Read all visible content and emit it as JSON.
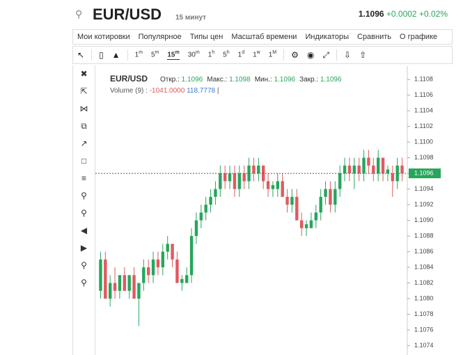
{
  "header": {
    "symbol": "EUR/USD",
    "interval": "15 минут",
    "price": "1.1096",
    "change": "+0.0002",
    "change_pct": "+0.02%"
  },
  "menu": [
    "Мои котировки",
    "Популярное",
    "Типы цен",
    "Масштаб времени",
    "Индикаторы",
    "Сравнить",
    "О графике"
  ],
  "timeframes": [
    {
      "n": "1",
      "u": "m"
    },
    {
      "n": "5",
      "u": "m"
    },
    {
      "n": "15",
      "u": "m"
    },
    {
      "n": "30",
      "u": "m"
    },
    {
      "n": "1",
      "u": "h"
    },
    {
      "n": "5",
      "u": "h"
    },
    {
      "n": "1",
      "u": "d"
    },
    {
      "n": "1",
      "u": "w"
    },
    {
      "n": "1",
      "u": "M"
    }
  ],
  "legend": {
    "symbol": "EUR/USD",
    "open_label": "Откр.:",
    "open": "1.1096",
    "high_label": "Макс.:",
    "high": "1.1098",
    "low_label": "Мин.:",
    "low": "1.1096",
    "close_label": "Закр.:",
    "close": "1.1096"
  },
  "volume_legend": {
    "label": "Volume (9)",
    "sep": ":",
    "v1": "-1041.0000",
    "v2": "118.7778",
    "end": "|"
  },
  "chart_data": {
    "type": "candlestick",
    "up_color": "#26a65b",
    "down_color": "#e05a5f",
    "ylim": [
      1.10728,
      1.11097
    ],
    "yticks": [
      1.1108,
      1.1106,
      1.1104,
      1.1102,
      {
        "value": 1.11,
        "label": "1.1100"
      },
      1.1098,
      1.1096,
      1.1094,
      1.1092,
      {
        "value": 1.109,
        "label": "1.1090"
      },
      1.1088,
      1.1086,
      1.1084,
      1.1082,
      {
        "value": 1.108,
        "label": "1.1080"
      },
      1.1078,
      1.1076,
      1.1074
    ],
    "last_price": {
      "value": 1.1096,
      "label": "1.1096"
    },
    "ohlc": [
      [
        1.1081,
        1.1086,
        1.108,
        1.1085
      ],
      [
        1.1085,
        1.1086,
        1.108,
        1.108
      ],
      [
        1.108,
        1.1083,
        1.1079,
        1.1082
      ],
      [
        1.1082,
        1.1084,
        1.108,
        1.1081
      ],
      [
        1.1081,
        1.1083,
        1.108,
        1.1083
      ],
      [
        1.1083,
        1.1084,
        1.1081,
        1.1081
      ],
      [
        1.1081,
        1.1083,
        1.108,
        1.1083
      ],
      [
        1.1083,
        1.1084,
        1.108,
        1.108
      ],
      [
        1.108,
        1.1082,
        1.10765,
        1.1082
      ],
      [
        1.1082,
        1.1085,
        1.1081,
        1.1084
      ],
      [
        1.1084,
        1.1085,
        1.1082,
        1.1083
      ],
      [
        1.1083,
        1.1086,
        1.1082,
        1.1085
      ],
      [
        1.1085,
        1.1086,
        1.1083,
        1.1084
      ],
      [
        1.1084,
        1.1087,
        1.1083,
        1.1086
      ],
      [
        1.1086,
        1.1088,
        1.1085,
        1.1087
      ],
      [
        1.1087,
        1.1087,
        1.1084,
        1.1085
      ],
      [
        1.1085,
        1.1086,
        1.1082,
        1.1082
      ],
      [
        1.1082,
        1.1083,
        1.1081,
        1.10825
      ],
      [
        1.1082,
        1.1084,
        1.1082,
        1.1083
      ],
      [
        1.1083,
        1.1089,
        1.1082,
        1.1088
      ],
      [
        1.1088,
        1.1091,
        1.1087,
        1.109
      ],
      [
        1.109,
        1.1092,
        1.1089,
        1.1091
      ],
      [
        1.1091,
        1.1093,
        1.109,
        1.1092
      ],
      [
        1.1092,
        1.1094,
        1.1091,
        1.1093
      ],
      [
        1.1093,
        1.1095,
        1.1092,
        1.1094
      ],
      [
        1.1094,
        1.1097,
        1.1093,
        1.1096
      ],
      [
        1.1096,
        1.1097,
        1.1094,
        1.1095
      ],
      [
        1.1095,
        1.1097,
        1.1094,
        1.1096
      ],
      [
        1.1096,
        1.1097,
        1.1093,
        1.1094
      ],
      [
        1.1094,
        1.1097,
        1.1093,
        1.1096
      ],
      [
        1.1096,
        1.1097,
        1.1094,
        1.1095
      ],
      [
        1.1095,
        1.1098,
        1.1094,
        1.1097
      ],
      [
        1.1097,
        1.1098,
        1.1095,
        1.1096
      ],
      [
        1.1096,
        1.1098,
        1.1095,
        1.1097
      ],
      [
        1.1097,
        1.1097,
        1.1094,
        1.1095
      ],
      [
        1.1095,
        1.1096,
        1.1093,
        1.1094
      ],
      [
        1.1094,
        1.1095,
        1.1093,
        1.10945
      ],
      [
        1.1094,
        1.1096,
        1.1093,
        1.1095
      ],
      [
        1.1095,
        1.1096,
        1.1093,
        1.1093
      ],
      [
        1.1093,
        1.1094,
        1.1091,
        1.1092
      ],
      [
        1.1092,
        1.1094,
        1.1091,
        1.1093
      ],
      [
        1.1093,
        1.1094,
        1.109,
        1.109
      ],
      [
        1.109,
        1.1091,
        1.1088,
        1.1089
      ],
      [
        1.1089,
        1.109,
        1.1088,
        1.10895
      ],
      [
        1.1089,
        1.1091,
        1.1089,
        1.109
      ],
      [
        1.109,
        1.1092,
        1.1089,
        1.1091
      ],
      [
        1.1091,
        1.1094,
        1.109,
        1.1093
      ],
      [
        1.1093,
        1.1095,
        1.1092,
        1.1094
      ],
      [
        1.1094,
        1.1095,
        1.1091,
        1.1092
      ],
      [
        1.1092,
        1.1095,
        1.1091,
        1.1094
      ],
      [
        1.1094,
        1.1097,
        1.1093,
        1.1096
      ],
      [
        1.1096,
        1.1098,
        1.1095,
        1.1097
      ],
      [
        1.1097,
        1.1098,
        1.1095,
        1.1096
      ],
      [
        1.1096,
        1.1098,
        1.1094,
        1.1097
      ],
      [
        1.1097,
        1.1098,
        1.1095,
        1.1096
      ],
      [
        1.1096,
        1.1099,
        1.1095,
        1.1098
      ],
      [
        1.1098,
        1.1099,
        1.1096,
        1.1097
      ],
      [
        1.1097,
        1.1098,
        1.1095,
        1.1096
      ],
      [
        1.1096,
        1.1099,
        1.1095,
        1.1098
      ],
      [
        1.1098,
        1.1098,
        1.1095,
        1.1096
      ],
      [
        1.1096,
        1.1097,
        1.1095,
        1.10965
      ],
      [
        1.1096,
        1.1097,
        1.1093,
        1.1095
      ],
      [
        1.1095,
        1.1098,
        1.1094,
        1.1097
      ],
      [
        1.1097,
        1.1098,
        1.1095,
        1.1096
      ]
    ]
  }
}
